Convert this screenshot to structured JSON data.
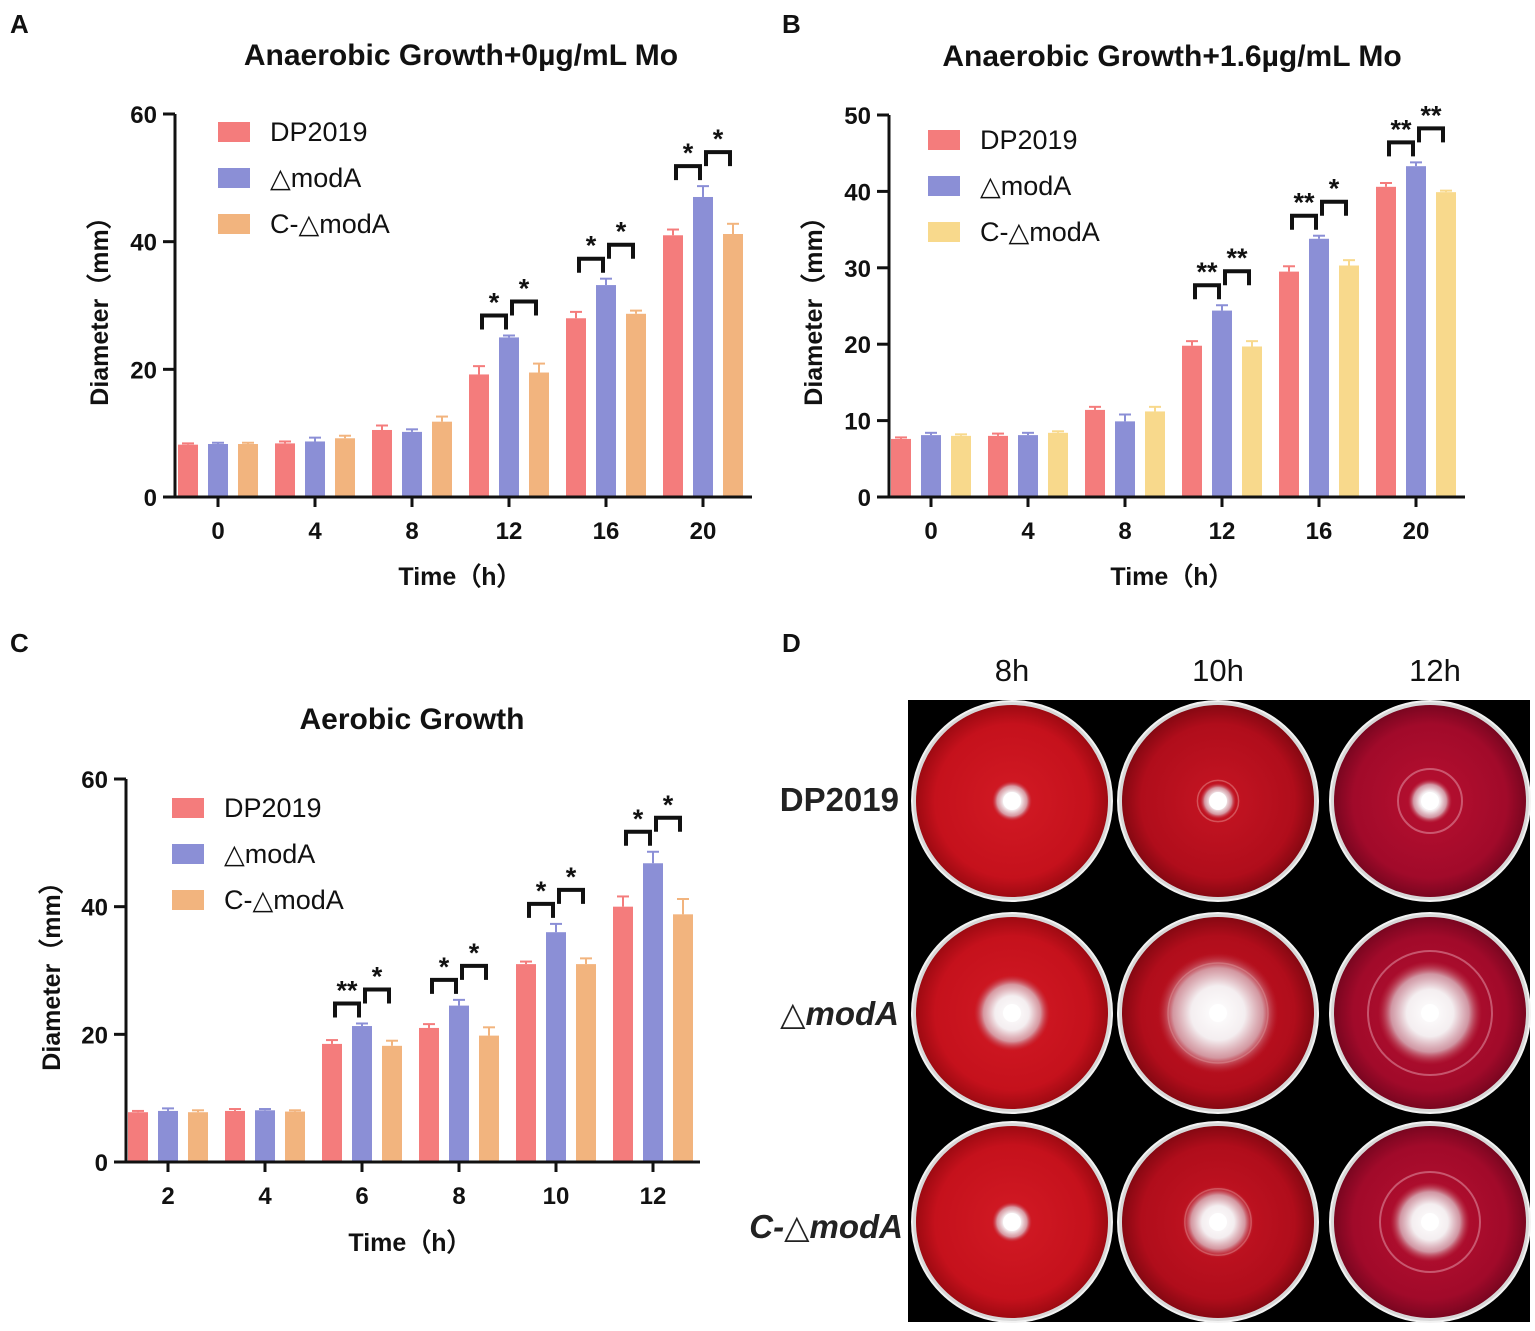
{
  "chart_data": [
    {
      "panel": "A",
      "type": "bar",
      "title": "Anaerobic Growth+0µg/mL Mo",
      "xlabel": "Time（h）",
      "ylabel": "Diameter（mm）",
      "ylim": [
        0,
        60
      ],
      "yticks": [
        0,
        20,
        40,
        60
      ],
      "categories": [
        "0",
        "4",
        "8",
        "12",
        "16",
        "20"
      ],
      "series": [
        {
          "name": "DP2019",
          "color": "#f47c7c",
          "values": [
            8.2,
            8.4,
            10.5,
            19.2,
            28.0,
            41.0
          ],
          "errors": [
            0.2,
            0.3,
            0.7,
            1.3,
            1.0,
            0.9
          ]
        },
        {
          "name": "△modA",
          "color": "#8b8fd6",
          "values": [
            8.3,
            8.7,
            10.2,
            25.0,
            33.2,
            47.0
          ],
          "errors": [
            0.2,
            0.6,
            0.4,
            0.3,
            1.0,
            1.7
          ]
        },
        {
          "name": "C-△modA",
          "color": "#f2b47e",
          "values": [
            8.3,
            9.2,
            11.8,
            19.5,
            28.7,
            41.2
          ],
          "errors": [
            0.2,
            0.4,
            0.8,
            1.4,
            0.5,
            1.6
          ]
        }
      ],
      "significance": [
        {
          "cat": 3,
          "from": 0,
          "to": 1,
          "label": "*"
        },
        {
          "cat": 3,
          "from": 1,
          "to": 2,
          "label": "*"
        },
        {
          "cat": 4,
          "from": 0,
          "to": 1,
          "label": "*"
        },
        {
          "cat": 4,
          "from": 1,
          "to": 2,
          "label": "*"
        },
        {
          "cat": 5,
          "from": 0,
          "to": 1,
          "label": "*"
        },
        {
          "cat": 5,
          "from": 1,
          "to": 2,
          "label": "*"
        }
      ]
    },
    {
      "panel": "B",
      "type": "bar",
      "title": "Anaerobic Growth+1.6µg/mL Mo",
      "xlabel": "Time（h）",
      "ylabel": "Diameter（mm）",
      "ylim": [
        0,
        50
      ],
      "yticks": [
        0,
        10,
        20,
        30,
        40,
        50
      ],
      "categories": [
        "0",
        "4",
        "8",
        "12",
        "16",
        "20"
      ],
      "series": [
        {
          "name": "DP2019",
          "color": "#f47c7c",
          "values": [
            7.6,
            8.0,
            11.4,
            19.8,
            29.5,
            40.6
          ],
          "errors": [
            0.2,
            0.3,
            0.4,
            0.6,
            0.7,
            0.5
          ]
        },
        {
          "name": "△modA",
          "color": "#8b8fd6",
          "values": [
            8.1,
            8.1,
            9.9,
            24.4,
            33.8,
            43.3
          ],
          "errors": [
            0.3,
            0.3,
            0.9,
            0.7,
            0.4,
            0.5
          ]
        },
        {
          "name": "C-△modA",
          "color": "#f8d98c",
          "values": [
            8.0,
            8.4,
            11.2,
            19.7,
            30.3,
            39.9
          ],
          "errors": [
            0.2,
            0.2,
            0.6,
            0.7,
            0.7,
            0.2
          ]
        }
      ],
      "significance": [
        {
          "cat": 3,
          "from": 0,
          "to": 1,
          "label": "**"
        },
        {
          "cat": 3,
          "from": 1,
          "to": 2,
          "label": "**"
        },
        {
          "cat": 4,
          "from": 0,
          "to": 1,
          "label": "**"
        },
        {
          "cat": 4,
          "from": 1,
          "to": 2,
          "label": "*"
        },
        {
          "cat": 5,
          "from": 0,
          "to": 1,
          "label": "**"
        },
        {
          "cat": 5,
          "from": 1,
          "to": 2,
          "label": "**"
        }
      ]
    },
    {
      "panel": "C",
      "type": "bar",
      "title": "Aerobic Growth",
      "xlabel": "Time（h）",
      "ylabel": "Diameter（mm）",
      "ylim": [
        0,
        60
      ],
      "yticks": [
        0,
        20,
        40,
        60
      ],
      "categories": [
        "2",
        "4",
        "6",
        "8",
        "10",
        "12"
      ],
      "series": [
        {
          "name": "DP2019",
          "color": "#f47c7c",
          "values": [
            7.8,
            8.0,
            18.5,
            21.0,
            31.0,
            40.0
          ],
          "errors": [
            0.2,
            0.3,
            0.6,
            0.6,
            0.4,
            1.6
          ]
        },
        {
          "name": "△modA",
          "color": "#8b8fd6",
          "values": [
            8.0,
            8.1,
            21.3,
            24.5,
            36.0,
            46.8
          ],
          "errors": [
            0.4,
            0.2,
            0.4,
            0.9,
            1.3,
            1.8
          ]
        },
        {
          "name": "C-△modA",
          "color": "#f2b47e",
          "values": [
            7.8,
            7.9,
            18.2,
            19.8,
            31.0,
            38.8
          ],
          "errors": [
            0.3,
            0.2,
            0.8,
            1.3,
            0.9,
            2.4
          ]
        }
      ],
      "significance": [
        {
          "cat": 2,
          "from": 0,
          "to": 1,
          "label": "**"
        },
        {
          "cat": 2,
          "from": 1,
          "to": 2,
          "label": "*"
        },
        {
          "cat": 3,
          "from": 0,
          "to": 1,
          "label": "*"
        },
        {
          "cat": 3,
          "from": 1,
          "to": 2,
          "label": "*"
        },
        {
          "cat": 4,
          "from": 0,
          "to": 1,
          "label": "*"
        },
        {
          "cat": 4,
          "from": 1,
          "to": 2,
          "label": "*"
        },
        {
          "cat": 5,
          "from": 0,
          "to": 1,
          "label": "*"
        },
        {
          "cat": 5,
          "from": 1,
          "to": 2,
          "label": "*"
        }
      ]
    }
  ],
  "photo_panel": {
    "panel": "D",
    "columns": [
      "8h",
      "10h",
      "12h"
    ],
    "rows": [
      "DP2019",
      "△modA",
      "C-△modA"
    ]
  }
}
